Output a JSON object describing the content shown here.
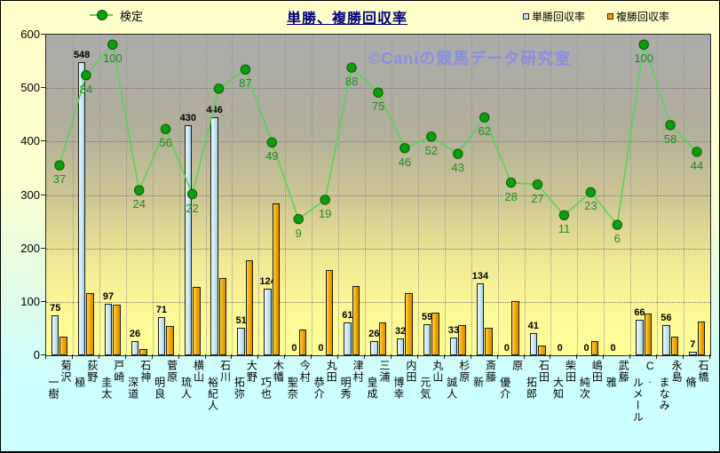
{
  "title": "単勝、複勝回収率",
  "watermark": "©Caniの競馬データ研究室",
  "legend": {
    "line_label": "検定",
    "win_label": "単勝回収率",
    "place_label": "複勝回収率"
  },
  "y_axis": {
    "ticks": [
      0,
      100,
      200,
      300,
      400,
      500,
      600
    ]
  },
  "chart_data": {
    "type": "bar",
    "note_types": "clustered bars with overlaid line series on hidden secondary axis",
    "title": "単勝、複勝回収率",
    "ylim": [
      0,
      600
    ],
    "grid": "horizontal and vertical dotted gridlines",
    "legend_position": "top",
    "categories": [
      "菊沢 一樹",
      "荻野 極",
      "戸崎 圭太",
      "石神 深道",
      "菅原 明良",
      "横山 琉人",
      "石川 裕紀人",
      "大野 拓弥",
      "木幡 巧也",
      "今村 聖奈",
      "丸田 恭介",
      "津村 明秀",
      "三浦 皇成",
      "内田 博幸",
      "丸山 元気",
      "杉原 誠人",
      "斎藤 新",
      "原 優介",
      "石田 拓郎",
      "柴田 大知",
      "嶋田 純次",
      "武藤 雅",
      "C. ルメール",
      "永島 まなみ",
      "石橋 脩"
    ],
    "series": [
      {
        "name": "単勝回収率",
        "type": "bar",
        "color": "#cdeaf7",
        "data_labels": true,
        "values": [
          75,
          548,
          97,
          26,
          71,
          430,
          446,
          51,
          124,
          0,
          0,
          61,
          26,
          32,
          59,
          33,
          134,
          0,
          41,
          0,
          0,
          0,
          66,
          56,
          7
        ]
      },
      {
        "name": "複勝回収率",
        "type": "bar",
        "color": "#f2a50c",
        "data_labels": false,
        "values": [
          35,
          117,
          95,
          12,
          55,
          128,
          145,
          178,
          285,
          48,
          160,
          130,
          62,
          117,
          80,
          57,
          52,
          102,
          18,
          0,
          27,
          0,
          78,
          35,
          63
        ]
      },
      {
        "name": "検定",
        "type": "line",
        "color": "#55d455",
        "marker_color": "#0ba00b",
        "data_labels": true,
        "hidden_label_index": 6,
        "values": [
          37,
          84,
          100,
          24,
          56,
          22,
          77,
          87,
          49,
          9,
          19,
          88,
          75,
          46,
          52,
          43,
          62,
          28,
          27,
          11,
          23,
          6,
          100,
          58,
          44
        ]
      }
    ]
  }
}
